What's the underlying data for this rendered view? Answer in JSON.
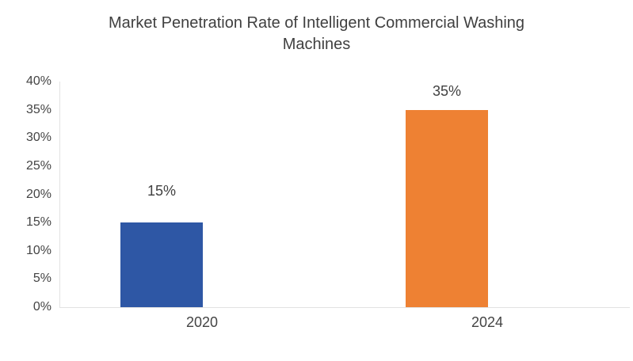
{
  "title": "Market Penetration Rate of Intelligent Commercial Washing Machines",
  "chart_data": {
    "type": "bar",
    "title": "Market Penetration Rate of Intelligent Commercial Washing Machines",
    "categories": [
      "2020",
      "2024"
    ],
    "values": [
      15,
      35
    ],
    "value_labels": [
      "15%",
      "35%"
    ],
    "bar_colors": [
      "#2E57A5",
      "#EE8133"
    ],
    "y_ticks": [
      "0%",
      "5%",
      "10%",
      "15%",
      "20%",
      "25%",
      "30%",
      "35%",
      "40%"
    ],
    "ylim": [
      0,
      40
    ],
    "xlabel": "",
    "ylabel": "",
    "gridlines": "off",
    "legend": "none",
    "colors": {
      "text": "#404040",
      "tick_text": "#444444",
      "axis_line": "#E2E2E2",
      "background": "#FFFFFF"
    }
  }
}
